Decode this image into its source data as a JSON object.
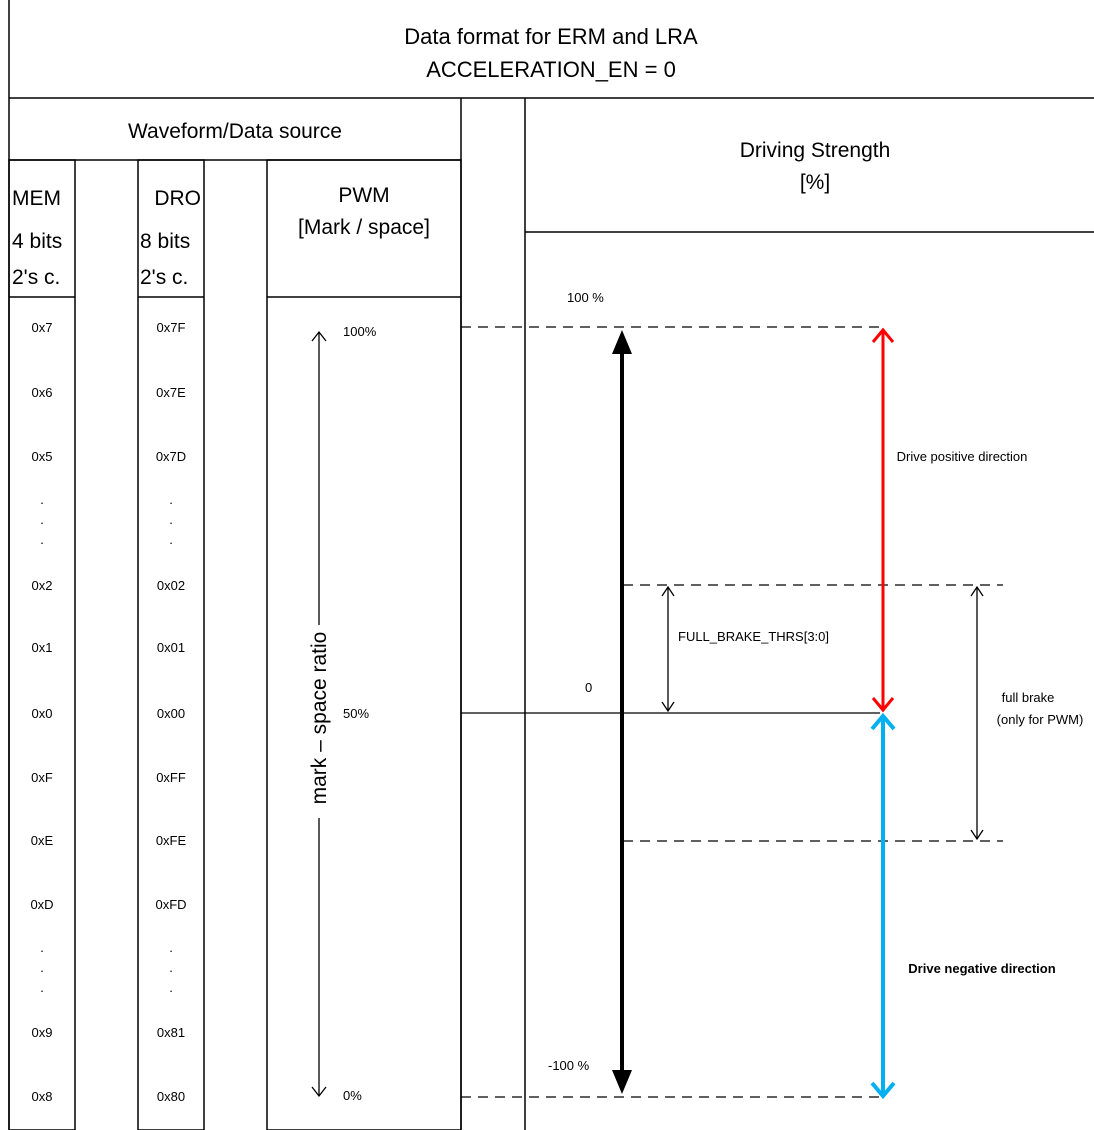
{
  "title": {
    "line1": "Data format for ERM and LRA",
    "line2": "ACCELERATION_EN = 0"
  },
  "left_panel": {
    "header": "Waveform/Data source",
    "columns": {
      "mem": {
        "name": "MEM",
        "bits": "4 bits",
        "format": "2's c."
      },
      "dro": {
        "name": "DRO",
        "bits": "8 bits",
        "format": "2's c."
      },
      "pwm": {
        "name": "PWM",
        "subtitle": "[Mark / space]"
      }
    },
    "rows": [
      {
        "mem": "0x7",
        "dro": "0x7F"
      },
      {
        "mem": "0x6",
        "dro": "0x7E"
      },
      {
        "mem": "0x5",
        "dro": "0x7D"
      },
      {
        "mem": ".",
        "dro": "."
      },
      {
        "mem": ".",
        "dro": "."
      },
      {
        "mem": ".",
        "dro": "."
      },
      {
        "mem": "0x2",
        "dro": "0x02"
      },
      {
        "mem": "0x1",
        "dro": "0x01"
      },
      {
        "mem": "0x0",
        "dro": "0x00"
      },
      {
        "mem": "0xF",
        "dro": "0xFF"
      },
      {
        "mem": "0xE",
        "dro": "0xFE"
      },
      {
        "mem": "0xD",
        "dro": "0xFD"
      },
      {
        "mem": ".",
        "dro": "."
      },
      {
        "mem": ".",
        "dro": "."
      },
      {
        "mem": ".",
        "dro": "."
      },
      {
        "mem": "0x9",
        "dro": "0x81"
      },
      {
        "mem": "0x8",
        "dro": "0x80"
      }
    ],
    "pwm_scale": {
      "top": "100%",
      "mid": "50%",
      "bottom": "0%",
      "axis_label": "mark – space ratio"
    }
  },
  "right_panel": {
    "header_line1": "Driving Strength",
    "header_line2": "[%]",
    "level_top": "100 %",
    "level_zero": "0",
    "level_bottom": "-100 %",
    "threshold_label": "FULL_BRAKE_THRS[3:0]",
    "full_brake_line1": "full brake",
    "full_brake_line2": "(only for PWM)",
    "positive_label": "Drive positive direction",
    "negative_label": "Drive negative direction"
  },
  "colors": {
    "positive": "#ff0000",
    "negative": "#00b0f0",
    "axis": "#000000"
  }
}
